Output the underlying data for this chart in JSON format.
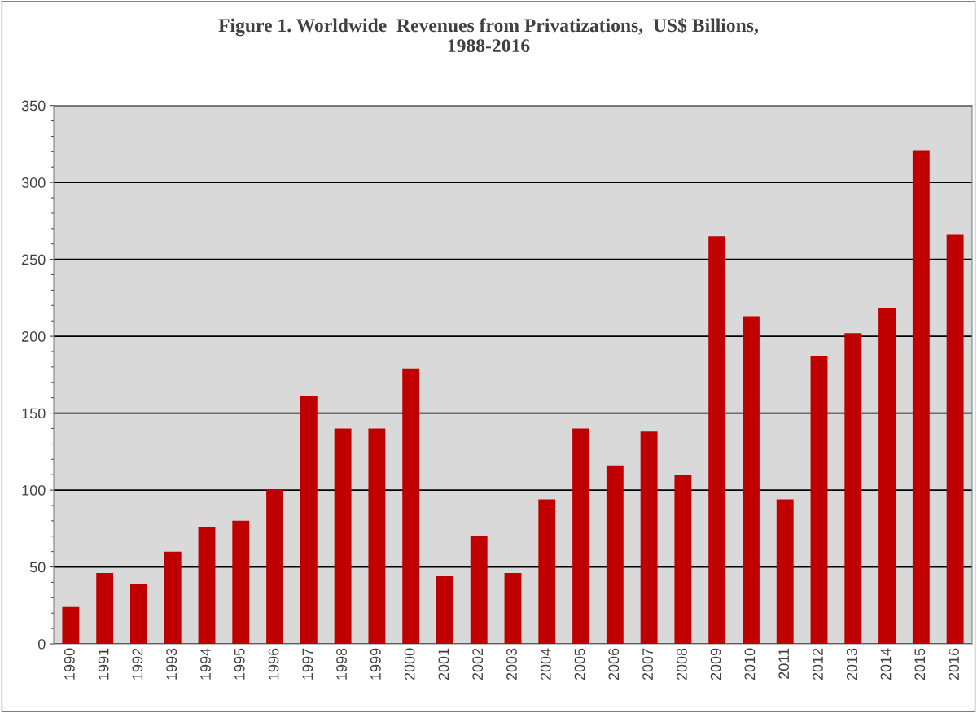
{
  "chart_data": {
    "type": "bar",
    "title": "Figure 1. Worldwide  Revenues from Privatizations,  US$ Billions,\n1988-2016",
    "categories": [
      "1990",
      "1991",
      "1992",
      "1993",
      "1994",
      "1995",
      "1996",
      "1997",
      "1998",
      "1999",
      "2000",
      "2001",
      "2002",
      "2003",
      "2004",
      "2005",
      "2006",
      "2007",
      "2008",
      "2009",
      "2010",
      "2011",
      "2012",
      "2013",
      "2014",
      "2015",
      "2016"
    ],
    "values": [
      24,
      46,
      39,
      60,
      76,
      80,
      100,
      161,
      140,
      140,
      179,
      44,
      70,
      46,
      94,
      140,
      116,
      138,
      110,
      265,
      213,
      94,
      187,
      202,
      218,
      321,
      266
    ],
    "color": "#c00000",
    "ylim": [
      0,
      350
    ],
    "yticks": [
      0,
      50,
      100,
      150,
      200,
      250,
      300,
      350
    ],
    "grid": "y"
  }
}
